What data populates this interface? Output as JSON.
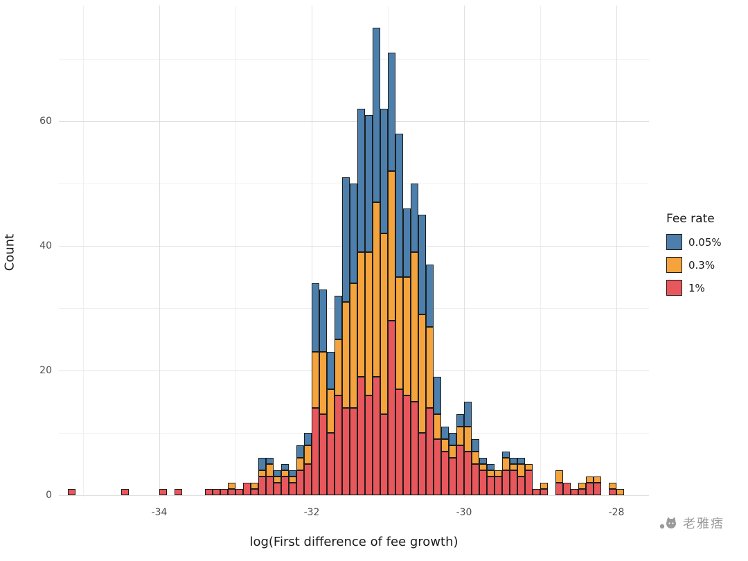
{
  "watermark": {
    "text": "老雅痞",
    "icon": "cat-face-icon"
  },
  "chart_data": {
    "type": "bar",
    "subtype": "stacked-histogram",
    "title": "",
    "xlabel": "log(First difference of fee growth)",
    "ylabel": "Count",
    "x_ticks": [
      -34,
      -32,
      -30,
      -28
    ],
    "x_minor": [
      -35,
      -33,
      -31,
      -29
    ],
    "y_ticks": [
      0,
      20,
      40,
      60
    ],
    "y_minor": [
      10,
      30,
      50,
      70
    ],
    "xlim": [
      -35.32,
      -27.59
    ],
    "ylim": [
      0,
      78
    ],
    "bin_width": 0.1,
    "grid": true,
    "background": "#ffffff",
    "bar_outline": "#1c1c1c",
    "bin_centers": [
      -35.15,
      -35.05,
      -34.95,
      -34.85,
      -34.75,
      -34.65,
      -34.55,
      -34.45,
      -34.35,
      -34.25,
      -34.15,
      -34.05,
      -33.95,
      -33.85,
      -33.75,
      -33.65,
      -33.55,
      -33.45,
      -33.35,
      -33.25,
      -33.15,
      -33.05,
      -32.95,
      -32.85,
      -32.75,
      -32.65,
      -32.55,
      -32.45,
      -32.35,
      -32.25,
      -32.15,
      -32.05,
      -31.95,
      -31.85,
      -31.75,
      -31.65,
      -31.55,
      -31.45,
      -31.35,
      -31.25,
      -31.15,
      -31.05,
      -30.95,
      -30.85,
      -30.75,
      -30.65,
      -30.55,
      -30.45,
      -30.35,
      -30.25,
      -30.15,
      -30.05,
      -29.95,
      -29.85,
      -29.75,
      -29.65,
      -29.55,
      -29.45,
      -29.35,
      -29.25,
      -29.15,
      -29.05,
      -28.95,
      -28.85,
      -28.75,
      -28.65,
      -28.55,
      -28.45,
      -28.35,
      -28.25,
      -28.15,
      -28.05,
      -27.95
    ],
    "series": [
      {
        "name": "1%",
        "color": "#E8575C",
        "values": [
          1,
          0,
          0,
          0,
          0,
          0,
          0,
          1,
          0,
          0,
          0,
          0,
          1,
          0,
          1,
          0,
          0,
          0,
          1,
          1,
          1,
          1,
          1,
          2,
          1,
          3,
          3,
          2,
          3,
          2,
          4,
          5,
          14,
          13,
          10,
          16,
          14,
          14,
          19,
          16,
          19,
          13,
          28,
          17,
          16,
          15,
          10,
          14,
          9,
          7,
          6,
          8,
          7,
          5,
          4,
          3,
          3,
          4,
          4,
          3,
          4,
          1,
          1,
          0,
          2,
          2,
          1,
          1,
          2,
          2,
          0,
          1,
          0
        ]
      },
      {
        "name": "0.3%",
        "color": "#F5A33C",
        "values": [
          0,
          0,
          0,
          0,
          0,
          0,
          0,
          0,
          0,
          0,
          0,
          0,
          0,
          0,
          0,
          0,
          0,
          0,
          0,
          0,
          0,
          1,
          0,
          0,
          1,
          1,
          2,
          1,
          1,
          1,
          2,
          3,
          9,
          10,
          7,
          9,
          17,
          20,
          20,
          23,
          28,
          29,
          24,
          18,
          19,
          24,
          19,
          13,
          4,
          2,
          2,
          3,
          4,
          2,
          1,
          1,
          1,
          2,
          1,
          2,
          1,
          0,
          1,
          0,
          2,
          0,
          0,
          1,
          1,
          1,
          0,
          1,
          1
        ]
      },
      {
        "name": "0.05%",
        "color": "#4C7FAC",
        "values": [
          0,
          0,
          0,
          0,
          0,
          0,
          0,
          0,
          0,
          0,
          0,
          0,
          0,
          0,
          0,
          0,
          0,
          0,
          0,
          0,
          0,
          0,
          0,
          0,
          0,
          2,
          1,
          1,
          1,
          1,
          2,
          2,
          11,
          10,
          6,
          7,
          20,
          16,
          23,
          22,
          28,
          20,
          19,
          23,
          11,
          11,
          16,
          10,
          6,
          2,
          2,
          2,
          4,
          2,
          1,
          1,
          0,
          1,
          1,
          1,
          0,
          0,
          0,
          0,
          0,
          0,
          0,
          0,
          0,
          0,
          0,
          0,
          0
        ]
      }
    ],
    "legend": {
      "title": "Fee rate",
      "position": "right",
      "entries": [
        {
          "label": "0.05%",
          "color": "#4C7FAC"
        },
        {
          "label": "0.3%",
          "color": "#F5A33C"
        },
        {
          "label": "1%",
          "color": "#E8575C"
        }
      ]
    }
  }
}
